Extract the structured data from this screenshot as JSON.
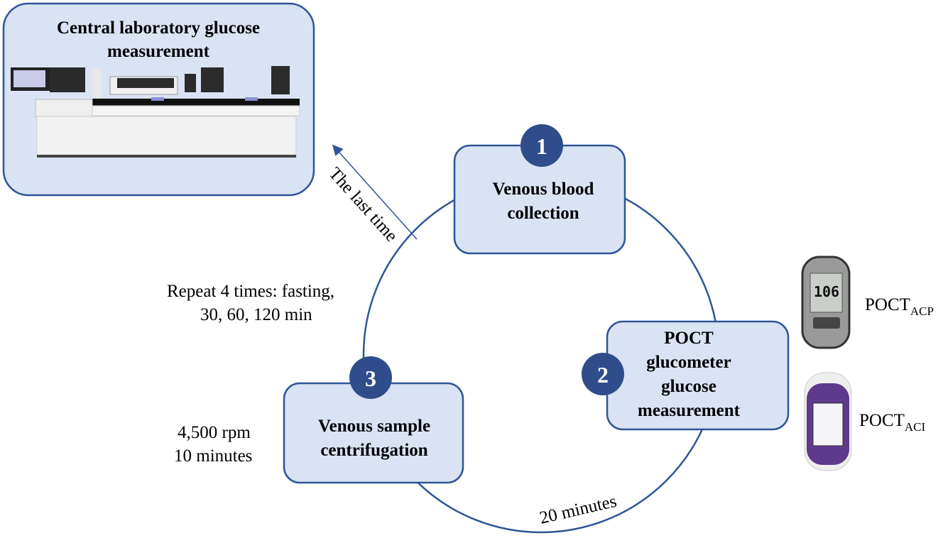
{
  "central_lab": {
    "title_line1": "Central laboratory glucose",
    "title_line2": "measurement",
    "icon": "lab-analyzer-image"
  },
  "steps": [
    {
      "number": "1",
      "line1": "Venous blood",
      "line2": "collection"
    },
    {
      "number": "2",
      "line1": "POCT",
      "line2": "glucometer",
      "line3": "glucose",
      "line4": "measurement"
    },
    {
      "number": "3",
      "line1": "Venous sample",
      "line2": "centrifugation"
    }
  ],
  "annotations": {
    "last_time": "The last time",
    "repeat_line1": "Repeat 4 times: fasting,",
    "repeat_line2": "30, 60, 120 min",
    "centrifuge_line1": "4,500 rpm",
    "centrifuge_line2": "10 minutes",
    "wait": "20 minutes"
  },
  "devices": [
    {
      "label": "POCT",
      "subscript": "ACP",
      "icon": "glucometer-acp-image",
      "screen_reading": "106"
    },
    {
      "label": "POCT",
      "subscript": "ACI",
      "icon": "glucometer-aci-image"
    }
  ],
  "colors": {
    "box_fill": "#dae3f3",
    "box_border": "#2f5597",
    "badge": "#2e4d8a",
    "circle": "#2f5597"
  }
}
